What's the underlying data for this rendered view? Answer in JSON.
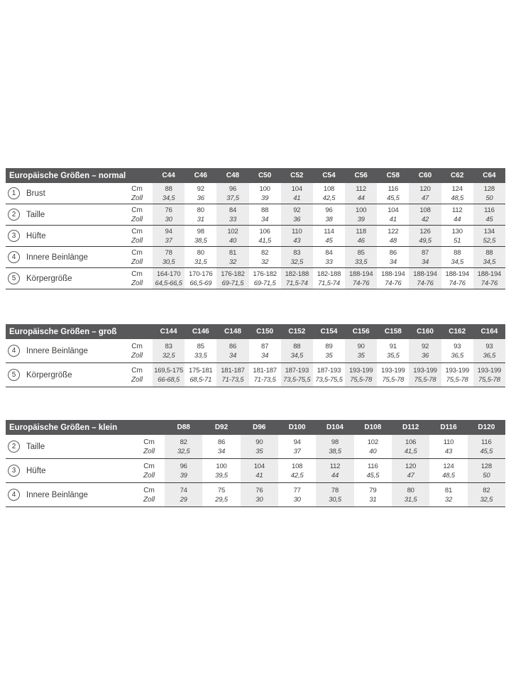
{
  "page": {
    "background": "#ffffff"
  },
  "theme": {
    "header_bg": "#58585a",
    "header_text": "#ffffff",
    "body_text": "#3c3c3b",
    "band_bg": "#ececec",
    "divider": "#3c3c3c"
  },
  "units": {
    "cm_label": "Cm",
    "zoll_label": "Zoll"
  },
  "tables": [
    {
      "id": "normal",
      "title": "Europäische Größen – normal",
      "columns": [
        "C44",
        "C46",
        "C48",
        "C50",
        "C52",
        "C54",
        "C56",
        "C58",
        "C60",
        "C62",
        "C64"
      ],
      "rows": [
        {
          "num": "1",
          "label": "Brust",
          "cm": [
            "88",
            "92",
            "96",
            "100",
            "104",
            "108",
            "112",
            "116",
            "120",
            "124",
            "128"
          ],
          "zoll": [
            "34,5",
            "36",
            "37,5",
            "39",
            "41",
            "42,5",
            "44",
            "45,5",
            "47",
            "48,5",
            "50"
          ]
        },
        {
          "num": "2",
          "label": "Taille",
          "cm": [
            "76",
            "80",
            "84",
            "88",
            "92",
            "96",
            "100",
            "104",
            "108",
            "112",
            "116"
          ],
          "zoll": [
            "30",
            "31",
            "33",
            "34",
            "36",
            "38",
            "39",
            "41",
            "42",
            "44",
            "45"
          ]
        },
        {
          "num": "3",
          "label": "Hüfte",
          "cm": [
            "94",
            "98",
            "102",
            "106",
            "110",
            "114",
            "118",
            "122",
            "126",
            "130",
            "134"
          ],
          "zoll": [
            "37",
            "38,5",
            "40",
            "41,5",
            "43",
            "45",
            "46",
            "48",
            "49,5",
            "51",
            "52,5"
          ]
        },
        {
          "num": "4",
          "label": "Innere Beinlänge",
          "cm": [
            "78",
            "80",
            "81",
            "82",
            "83",
            "84",
            "85",
            "86",
            "87",
            "88",
            "88"
          ],
          "zoll": [
            "30,5",
            "31,5",
            "32",
            "32",
            "32,5",
            "33",
            "33,5",
            "34",
            "34",
            "34,5",
            "34,5"
          ]
        },
        {
          "num": "5",
          "label": "Körpergröße",
          "cm": [
            "164-170",
            "170-176",
            "176-182",
            "176-182",
            "182-188",
            "182-188",
            "188-194",
            "188-194",
            "188-194",
            "188-194",
            "188-194"
          ],
          "zoll": [
            "64,5-66,5",
            "66,5-69",
            "69-71,5",
            "69-71,5",
            "71,5-74",
            "71,5-74",
            "74-76",
            "74-76",
            "74-76",
            "74-76",
            "74-76"
          ]
        }
      ]
    },
    {
      "id": "gross",
      "title": "Europäische Größen – groß",
      "columns": [
        "C144",
        "C146",
        "C148",
        "C150",
        "C152",
        "C154",
        "C156",
        "C158",
        "C160",
        "C162",
        "C164"
      ],
      "rows": [
        {
          "num": "4",
          "label": "Innere Beinlänge",
          "cm": [
            "83",
            "85",
            "86",
            "87",
            "88",
            "89",
            "90",
            "91",
            "92",
            "93",
            "93"
          ],
          "zoll": [
            "32,5",
            "33,5",
            "34",
            "34",
            "34,5",
            "35",
            "35",
            "35,5",
            "36",
            "36,5",
            "36,5"
          ]
        },
        {
          "num": "5",
          "label": "Körpergröße",
          "cm": [
            "169,5-175",
            "175-181",
            "181-187",
            "181-187",
            "187-193",
            "187-193",
            "193-199",
            "193-199",
            "193-199",
            "193-199",
            "193-199"
          ],
          "zoll": [
            "66-68,5",
            "68,5-71",
            "71-73,5",
            "71-73,5",
            "73,5-75,5",
            "73,5-75,5",
            "75,5-78",
            "75,5-78",
            "75,5-78",
            "75,5-78",
            "75,5-78"
          ]
        }
      ]
    },
    {
      "id": "klein",
      "title": "Europäische Größen – klein",
      "columns": [
        "D88",
        "D92",
        "D96",
        "D100",
        "D104",
        "D108",
        "D112",
        "D116",
        "D120"
      ],
      "rows": [
        {
          "num": "2",
          "label": "Taille",
          "cm": [
            "82",
            "86",
            "90",
            "94",
            "98",
            "102",
            "106",
            "110",
            "116"
          ],
          "zoll": [
            "32,5",
            "34",
            "35",
            "37",
            "38,5",
            "40",
            "41,5",
            "43",
            "45,5"
          ]
        },
        {
          "num": "3",
          "label": "Hüfte",
          "cm": [
            "96",
            "100",
            "104",
            "108",
            "112",
            "116",
            "120",
            "124",
            "128"
          ],
          "zoll": [
            "39",
            "39,5",
            "41",
            "42,5",
            "44",
            "45,5",
            "47",
            "48,5",
            "50"
          ]
        },
        {
          "num": "4",
          "label": "Innere Beinlänge",
          "cm": [
            "74",
            "75",
            "76",
            "77",
            "78",
            "79",
            "80",
            "81",
            "82"
          ],
          "zoll": [
            "29",
            "29,5",
            "30",
            "30",
            "30,5",
            "31",
            "31,5",
            "32",
            "32,5"
          ]
        }
      ]
    }
  ]
}
